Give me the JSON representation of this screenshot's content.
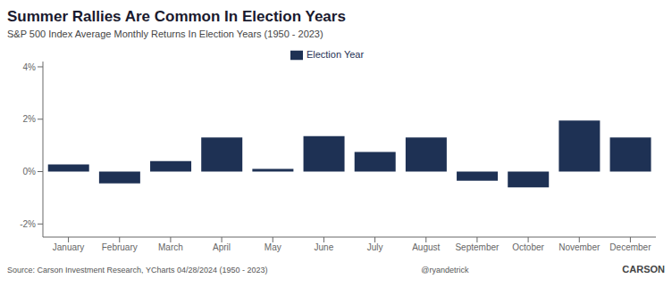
{
  "chart_data": {
    "type": "bar",
    "title": "Summer Rallies Are Common In Election Years",
    "subtitle": "S&P 500 Index Average Monthly Returns In Election Years (1950 - 2023)",
    "categories": [
      "January",
      "February",
      "March",
      "April",
      "May",
      "June",
      "July",
      "August",
      "September",
      "October",
      "November",
      "December"
    ],
    "series": [
      {
        "name": "Election Year",
        "color": "#1e3154",
        "values": [
          0.27,
          -0.45,
          0.4,
          1.3,
          0.1,
          1.35,
          0.75,
          1.3,
          -0.35,
          -0.6,
          1.95,
          1.3
        ]
      }
    ],
    "ylim": [
      -2.5,
      4.2
    ],
    "yticks": [
      {
        "value": -2,
        "label": "-2%"
      },
      {
        "value": 0,
        "label": "0%"
      },
      {
        "value": 2,
        "label": "2%"
      },
      {
        "value": 4,
        "label": "4%"
      }
    ],
    "grid": false,
    "legend": "top",
    "annotations": [
      "Source: Carson Investment Research, YCharts 04/28/2024 (1950 - 2023)",
      "@ryandetrick",
      "CARSON"
    ]
  }
}
